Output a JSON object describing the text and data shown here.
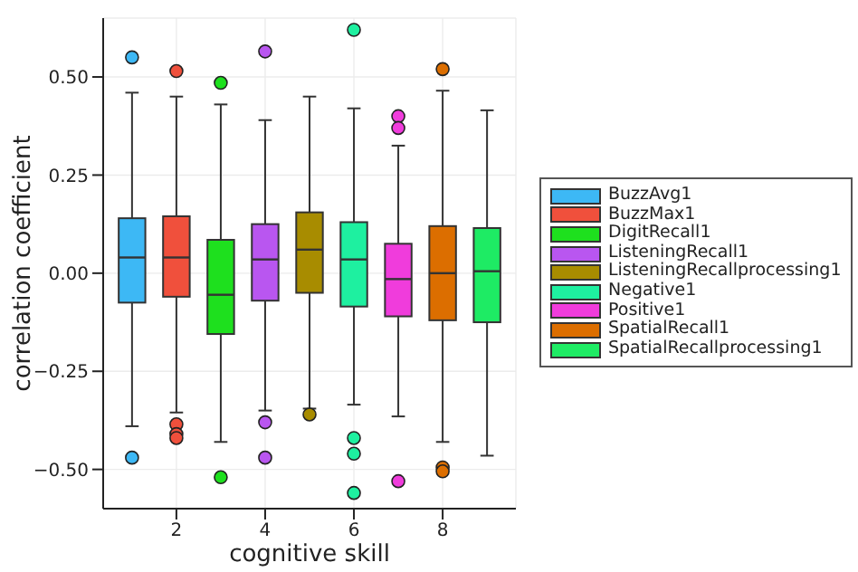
{
  "chart_data": {
    "type": "box",
    "xlabel": "cognitive skill",
    "ylabel": "correlation coefficient",
    "xlim": [
      0.35,
      9.65
    ],
    "xticks": [
      2,
      4,
      6,
      8
    ],
    "ylim": [
      -0.6,
      0.65
    ],
    "yticks": [
      {
        "value": -0.5,
        "label": "−0.50"
      },
      {
        "value": -0.25,
        "label": "−0.25"
      },
      {
        "value": 0,
        "label": "0.00"
      },
      {
        "value": 0.25,
        "label": "0.25"
      },
      {
        "value": 0.5,
        "label": "0.50"
      }
    ],
    "grid": true,
    "legend": "right",
    "marker": "circle",
    "series": [
      {
        "name": "BuzzAvg1",
        "color": "#3db8f5",
        "x": [
          1
        ],
        "boxes": [
          {
            "low": -0.39,
            "q1": -0.075,
            "median": 0.04,
            "q3": 0.14,
            "high": 0.46,
            "outliers": [
              0.55,
              -0.47
            ]
          }
        ]
      },
      {
        "name": "BuzzMax1",
        "color": "#f0503c",
        "x": [
          2
        ],
        "boxes": [
          {
            "low": -0.355,
            "q1": -0.06,
            "median": 0.04,
            "q3": 0.145,
            "high": 0.45,
            "outliers": [
              0.515,
              -0.385,
              -0.41,
              -0.42
            ]
          }
        ]
      },
      {
        "name": "DigitRecall1",
        "color": "#1ee01e",
        "x": [
          3
        ],
        "boxes": [
          {
            "low": -0.43,
            "q1": -0.155,
            "median": -0.055,
            "q3": 0.085,
            "high": 0.43,
            "outliers": [
              0.485,
              -0.52
            ]
          }
        ]
      },
      {
        "name": "ListeningRecall1",
        "color": "#b956f0",
        "x": [
          4
        ],
        "boxes": [
          {
            "low": -0.35,
            "q1": -0.07,
            "median": 0.035,
            "q3": 0.125,
            "high": 0.39,
            "outliers": [
              0.565,
              -0.38,
              -0.47
            ]
          }
        ]
      },
      {
        "name": "ListeningRecallprocessing1",
        "color": "#a88c00",
        "x": [
          5
        ],
        "boxes": [
          {
            "low": -0.345,
            "q1": -0.05,
            "median": 0.06,
            "q3": 0.155,
            "high": 0.45,
            "outliers": [
              -0.36
            ]
          }
        ]
      },
      {
        "name": "Negative1",
        "color": "#1ef0a0",
        "x": [
          6
        ],
        "boxes": [
          {
            "low": -0.335,
            "q1": -0.085,
            "median": 0.035,
            "q3": 0.13,
            "high": 0.42,
            "outliers": [
              0.62,
              -0.42,
              -0.46,
              -0.56
            ]
          }
        ]
      },
      {
        "name": "Positive1",
        "color": "#f03cdc",
        "x": [
          7
        ],
        "boxes": [
          {
            "low": -0.365,
            "q1": -0.11,
            "median": -0.015,
            "q3": 0.075,
            "high": 0.325,
            "outliers": [
              0.4,
              0.37,
              -0.53
            ]
          }
        ]
      },
      {
        "name": "SpatialRecall1",
        "color": "#dc6e00",
        "x": [
          8
        ],
        "boxes": [
          {
            "low": -0.43,
            "q1": -0.12,
            "median": 0,
            "q3": 0.12,
            "high": 0.465,
            "outliers": [
              0.52,
              -0.495,
              -0.505
            ]
          }
        ]
      },
      {
        "name": "SpatialRecallprocessing1",
        "color": "#1eeb64",
        "x": [
          9
        ],
        "boxes": [
          {
            "low": -0.465,
            "q1": -0.125,
            "median": 0.005,
            "q3": 0.115,
            "high": 0.415
          }
        ]
      }
    ]
  }
}
